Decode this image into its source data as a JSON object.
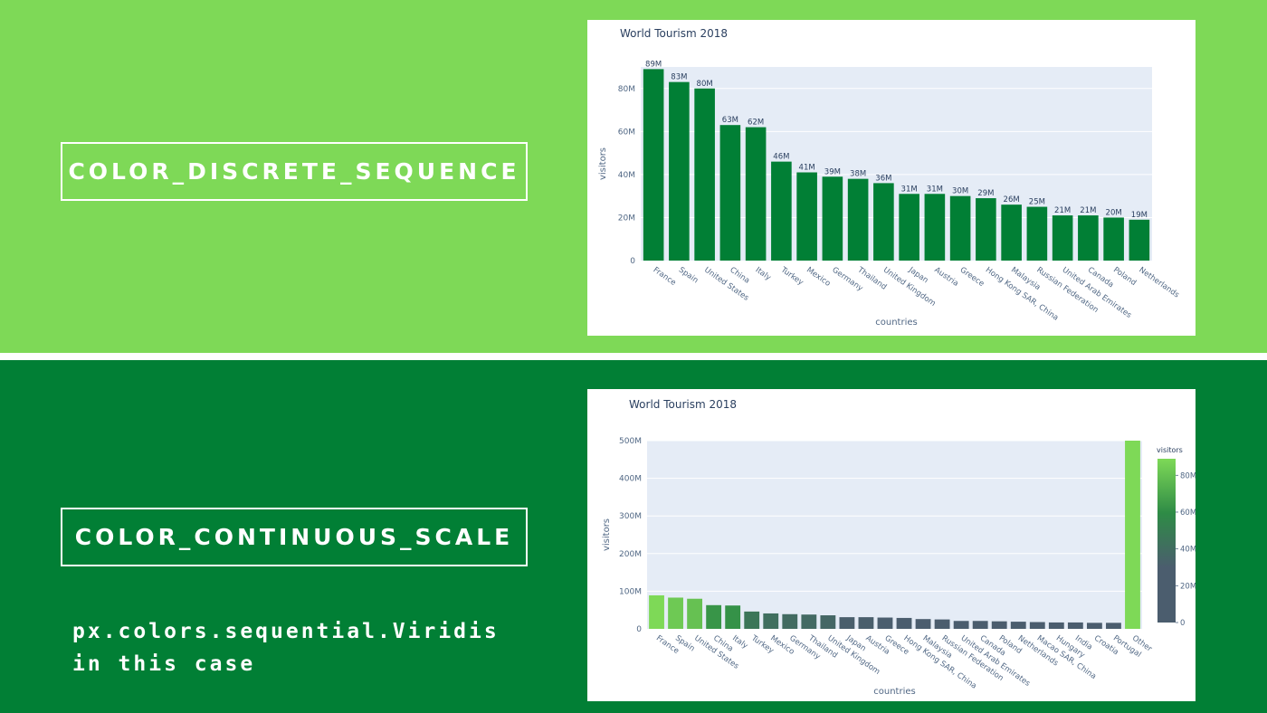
{
  "labels": {
    "top": "COLOR_DISCRETE_SEQUENCE",
    "bottom": "COLOR_CONTINUOUS_SCALE",
    "note_line1": "px.colors.sequential.Viridis",
    "note_line2": "in this case"
  },
  "colors": {
    "top_background": "#7ed957",
    "bottom_background": "#017f35",
    "bar_discrete": "#017f35",
    "plot_background": "#e5ecf6",
    "colorscale": [
      "#4b5d6e",
      "#4b5d6e",
      "#2e8b46",
      "#7ed957"
    ]
  },
  "chart_data": [
    {
      "type": "bar",
      "title": "World Tourism 2018",
      "xlabel": "countries",
      "ylabel": "visitors",
      "ylim": [
        0,
        90
      ],
      "yticks": [
        "0",
        "20M",
        "40M",
        "60M",
        "80M"
      ],
      "ytick_values": [
        0,
        20,
        40,
        60,
        80
      ],
      "categories": [
        "France",
        "Spain",
        "United States",
        "China",
        "Italy",
        "Turkey",
        "Mexico",
        "Germany",
        "Thailand",
        "United Kingdom",
        "Japan",
        "Austria",
        "Greece",
        "Hong Kong SAR, China",
        "Malaysia",
        "Russian Federation",
        "United Arab Emirates",
        "Canada",
        "Poland",
        "Netherlands"
      ],
      "values": [
        89,
        83,
        80,
        63,
        62,
        46,
        41,
        39,
        38,
        36,
        31,
        31,
        30,
        29,
        26,
        25,
        21,
        21,
        20,
        19
      ],
      "data_labels": [
        "89M",
        "83M",
        "80M",
        "63M",
        "62M",
        "46M",
        "41M",
        "39M",
        "38M",
        "36M",
        "31M",
        "31M",
        "30M",
        "29M",
        "26M",
        "25M",
        "21M",
        "21M",
        "20M",
        "19M"
      ],
      "grid": true
    },
    {
      "type": "bar",
      "title": "World Tourism 2018",
      "xlabel": "countries",
      "ylabel": "visitors",
      "ylim": [
        0,
        500
      ],
      "yticks": [
        "0",
        "100M",
        "200M",
        "300M",
        "400M",
        "500M"
      ],
      "ytick_values": [
        0,
        100,
        200,
        300,
        400,
        500
      ],
      "categories": [
        "France",
        "Spain",
        "United States",
        "China",
        "Italy",
        "Turkey",
        "Mexico",
        "Germany",
        "Thailand",
        "United Kingdom",
        "Japan",
        "Austria",
        "Greece",
        "Hong Kong SAR, China",
        "Malaysia",
        "Russian Federation",
        "United Arab Emirates",
        "Canada",
        "Poland",
        "Netherlands",
        "Macao SAR, China",
        "Hungary",
        "India",
        "Croatia",
        "Portugal",
        "Other"
      ],
      "values": [
        89,
        83,
        80,
        63,
        62,
        46,
        41,
        39,
        38,
        36,
        31,
        31,
        30,
        29,
        26,
        25,
        21,
        21,
        20,
        19,
        18,
        17,
        17,
        16,
        16,
        500
      ],
      "colorbar": {
        "title": "visitors",
        "ticks": [
          "0",
          "20M",
          "40M",
          "60M",
          "80M"
        ],
        "tick_values": [
          0,
          20,
          40,
          60,
          80
        ],
        "range": [
          0,
          89
        ]
      },
      "grid": true
    }
  ]
}
